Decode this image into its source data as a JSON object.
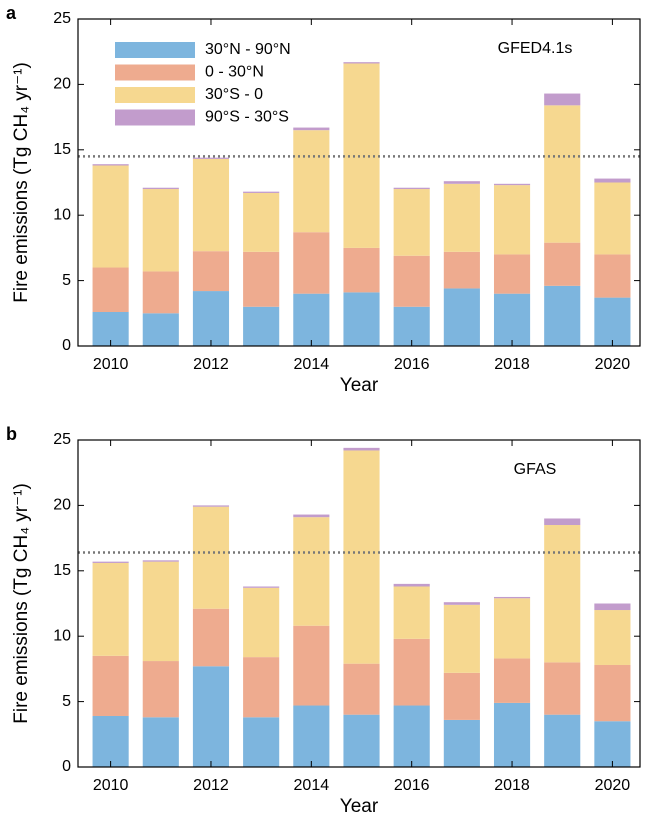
{
  "chart_data": [
    {
      "type": "bar",
      "stacked": true,
      "panel_label": "a",
      "annotation": "GFED4.1s",
      "x_label": "Year",
      "y_label": "Fire emissions (Tg CH₄ yr⁻¹)",
      "x": [
        2010,
        2011,
        2012,
        2013,
        2014,
        2015,
        2016,
        2017,
        2018,
        2019,
        2020
      ],
      "xlim": [
        2009.35,
        2020.55
      ],
      "xticks": [
        2010,
        2012,
        2014,
        2016,
        2018,
        2020
      ],
      "ylim": [
        0,
        25
      ],
      "yticks": [
        0,
        5,
        10,
        15,
        20,
        25
      ],
      "reference_line": 14.5,
      "legend": true,
      "series": [
        {
          "name": "30°N - 90°N",
          "color": "#7db5de",
          "values": [
            2.6,
            2.5,
            4.2,
            3.0,
            4.0,
            4.1,
            3.0,
            4.4,
            4.0,
            4.6,
            3.7
          ]
        },
        {
          "name": "0 - 30°N",
          "color": "#eeab8f",
          "values": [
            3.4,
            3.2,
            3.05,
            4.2,
            4.7,
            3.4,
            3.9,
            2.8,
            3.0,
            3.3,
            3.3
          ]
        },
        {
          "name": "30°S - 0",
          "color": "#f6d890",
          "values": [
            7.8,
            6.3,
            7.05,
            4.5,
            7.8,
            14.1,
            5.1,
            5.2,
            5.3,
            10.5,
            5.5
          ]
        },
        {
          "name": "90°S - 30°S",
          "color": "#c29ccc",
          "values": [
            0.1,
            0.1,
            0.1,
            0.1,
            0.2,
            0.1,
            0.1,
            0.2,
            0.1,
            0.9,
            0.3
          ]
        }
      ]
    },
    {
      "type": "bar",
      "stacked": true,
      "panel_label": "b",
      "annotation": "GFAS",
      "x_label": "Year",
      "y_label": "Fire emissions (Tg CH₄ yr⁻¹)",
      "x": [
        2010,
        2011,
        2012,
        2013,
        2014,
        2015,
        2016,
        2017,
        2018,
        2019,
        2020
      ],
      "xlim": [
        2009.35,
        2020.55
      ],
      "xticks": [
        2010,
        2012,
        2014,
        2016,
        2018,
        2020
      ],
      "ylim": [
        0,
        25
      ],
      "yticks": [
        0,
        5,
        10,
        15,
        20,
        25
      ],
      "reference_line": 16.4,
      "legend": false,
      "series": [
        {
          "color": "#7db5de",
          "values": [
            3.9,
            3.8,
            7.7,
            3.8,
            4.7,
            4.0,
            4.7,
            3.6,
            4.9,
            4.0,
            3.5
          ]
        },
        {
          "color": "#eeab8f",
          "values": [
            4.6,
            4.3,
            4.4,
            4.6,
            6.1,
            3.9,
            5.1,
            3.6,
            3.4,
            4.0,
            4.3
          ]
        },
        {
          "color": "#f6d890",
          "values": [
            7.1,
            7.6,
            7.8,
            5.3,
            8.3,
            16.3,
            4.0,
            5.2,
            4.6,
            10.5,
            4.2
          ]
        },
        {
          "color": "#c29ccc",
          "values": [
            0.1,
            0.1,
            0.1,
            0.1,
            0.2,
            0.2,
            0.2,
            0.2,
            0.1,
            0.5,
            0.5
          ]
        }
      ]
    }
  ]
}
